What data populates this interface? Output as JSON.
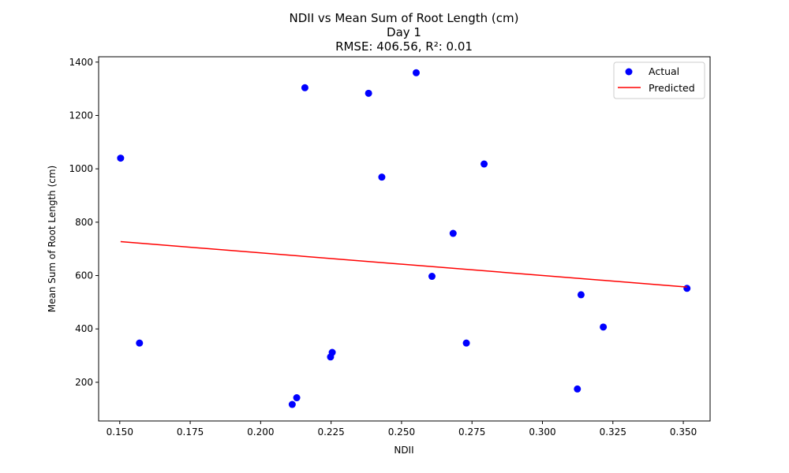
{
  "chart_data": {
    "type": "scatter",
    "title_lines": [
      "NDII vs Mean Sum of Root Length (cm)",
      "Day 1",
      "RMSE: 406.56, R²: 0.01"
    ],
    "xlabel": "NDII",
    "ylabel": "Mean Sum of Root Length (cm)",
    "xlim": [
      0.1425,
      0.3595
    ],
    "ylim": [
      55,
      1420
    ],
    "xticks": [
      0.15,
      0.175,
      0.2,
      0.225,
      0.25,
      0.275,
      0.3,
      0.325,
      0.35
    ],
    "xtick_labels": [
      "0.150",
      "0.175",
      "0.200",
      "0.225",
      "0.250",
      "0.275",
      "0.300",
      "0.325",
      "0.350"
    ],
    "yticks": [
      200,
      400,
      600,
      800,
      1000,
      1200,
      1400
    ],
    "ytick_labels": [
      "200",
      "400",
      "600",
      "800",
      "1000",
      "1200",
      "1400"
    ],
    "grid": false,
    "legend_position": "top-right",
    "series": [
      {
        "name": "Actual",
        "kind": "scatter",
        "color": "#0000ff",
        "points": [
          {
            "x": 0.1503,
            "y": 1040
          },
          {
            "x": 0.157,
            "y": 347
          },
          {
            "x": 0.2112,
            "y": 117
          },
          {
            "x": 0.2128,
            "y": 142
          },
          {
            "x": 0.2157,
            "y": 1304
          },
          {
            "x": 0.2248,
            "y": 295
          },
          {
            "x": 0.2254,
            "y": 312
          },
          {
            "x": 0.2383,
            "y": 1283
          },
          {
            "x": 0.243,
            "y": 969
          },
          {
            "x": 0.2552,
            "y": 1360
          },
          {
            "x": 0.2608,
            "y": 597
          },
          {
            "x": 0.2683,
            "y": 758
          },
          {
            "x": 0.273,
            "y": 347
          },
          {
            "x": 0.2793,
            "y": 1018
          },
          {
            "x": 0.3124,
            "y": 175
          },
          {
            "x": 0.3137,
            "y": 528
          },
          {
            "x": 0.3216,
            "y": 407
          },
          {
            "x": 0.3513,
            "y": 552
          }
        ]
      },
      {
        "name": "Predicted",
        "kind": "line",
        "color": "#ff0000",
        "points": [
          {
            "x": 0.1503,
            "y": 727
          },
          {
            "x": 0.3513,
            "y": 557
          }
        ]
      }
    ]
  }
}
